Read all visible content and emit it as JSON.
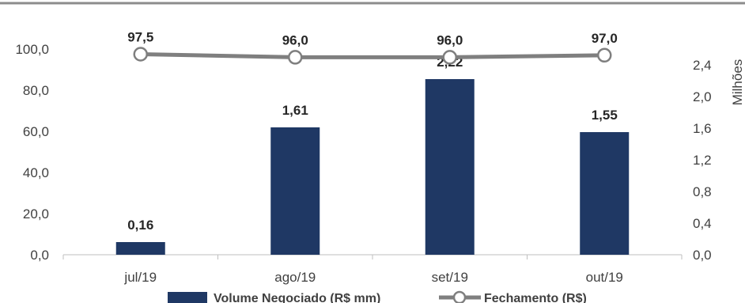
{
  "chart_data": {
    "type": "bar",
    "categories": [
      "jul/19",
      "ago/19",
      "set/19",
      "out/19"
    ],
    "series": [
      {
        "name": "Volume Negociado (R$ mm)",
        "chart_type": "bar",
        "axis": "secondary",
        "values": [
          0.16,
          1.61,
          2.22,
          1.55
        ],
        "labels": [
          "0,16",
          "1,61",
          "2,22",
          "1,55"
        ],
        "color": "#1f3864"
      },
      {
        "name": "Fechamento (R$)",
        "chart_type": "line",
        "axis": "primary",
        "values": [
          97.5,
          96.0,
          96.0,
          97.0
        ],
        "labels": [
          "97,5",
          "96,0",
          "96,0",
          "97,0"
        ],
        "color": "#7f7f7f",
        "marker": "circle-hollow"
      }
    ],
    "primary_axis": {
      "ylim": [
        0,
        100
      ],
      "ticks": [
        0,
        20,
        40,
        60,
        80,
        100
      ],
      "tick_labels": [
        "0,0",
        "20,0",
        "40,0",
        "60,0",
        "80,0",
        "100,0"
      ]
    },
    "secondary_axis": {
      "ylim": [
        0,
        2.6
      ],
      "ticks": [
        0,
        0.4,
        0.8,
        1.2,
        1.6,
        2.0,
        2.4
      ],
      "tick_labels": [
        "0,0",
        "0,4",
        "0,8",
        "1,2",
        "1,6",
        "2,0",
        "2,4"
      ],
      "unit_label": "Milhões"
    },
    "legend": {
      "position": "bottom",
      "items": [
        "Volume Negociado (R$ mm)",
        "Fechamento (R$)"
      ]
    },
    "grid": false,
    "top_rule": true
  }
}
